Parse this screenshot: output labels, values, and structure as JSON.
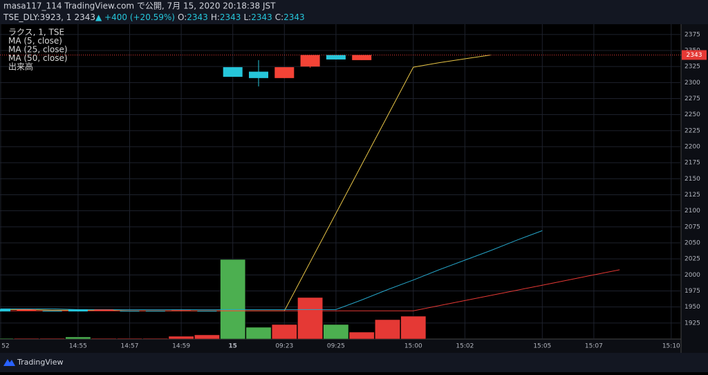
{
  "chart_data": {
    "type": "candlestick",
    "header": "masa117_114 TradingView.com で公開, 7月 15, 2020 20:18:38 JST",
    "symbol": "TSE_DLY:3923, 1",
    "last": 2343,
    "change": "▲ +400 (+20.59%)",
    "ohlc_labels": [
      "O:",
      "H:",
      "L:",
      "C:"
    ],
    "ohlc_values": [
      2343,
      2343,
      2343,
      2343
    ],
    "legend": [
      "ラクス, 1, TSE",
      "MA (5, close)",
      "MA (25, close)",
      "MA (50, close)",
      "出来高"
    ],
    "brand": "TradingView",
    "categories": [
      "52",
      null,
      null,
      "14:55",
      null,
      "14:57",
      null,
      "14:59",
      null,
      "15",
      null,
      "09:23",
      null,
      "09:25",
      null,
      null,
      "15:00",
      null,
      "15:02",
      null,
      null,
      "15:05",
      null,
      "15:07",
      null,
      null,
      "15:10"
    ],
    "open": [
      1943,
      1946,
      1944,
      1943,
      1946,
      1944,
      1944,
      1945,
      1944,
      2309,
      2307,
      2324,
      2343,
      2336,
      2343,
      null,
      null,
      null,
      null,
      null,
      null,
      null,
      null,
      null,
      null,
      null,
      null
    ],
    "high": [
      1947,
      1946,
      1944,
      1946,
      1946,
      1944,
      1944,
      1945,
      1944,
      2324,
      2335,
      2324,
      2343,
      2343,
      2343,
      null,
      null,
      null,
      null,
      null,
      null,
      null,
      null,
      null,
      null,
      null,
      null
    ],
    "low": [
      1943,
      1944,
      1944,
      1943,
      1944,
      1944,
      1944,
      1944,
      1944,
      2309,
      2294,
      2307,
      2323,
      2336,
      2335,
      null,
      null,
      null,
      null,
      null,
      null,
      null,
      null,
      null,
      null,
      null,
      null
    ],
    "close": [
      1947,
      1944,
      1944,
      1946,
      1944,
      1944,
      1944,
      1944,
      1944,
      2324,
      2317,
      2307,
      2325,
      2343,
      2335,
      null,
      null,
      null,
      null,
      null,
      null,
      null,
      null,
      null,
      null,
      null,
      null
    ],
    "up_color": "#26c6da",
    "down_color": "#f44336",
    "volume": [
      1,
      1,
      1,
      3,
      1,
      1,
      1,
      4,
      6,
      115,
      17,
      21,
      60,
      21,
      10,
      28,
      33,
      null,
      null,
      null,
      null,
      null,
      null,
      null,
      null,
      null,
      null
    ],
    "volume_colors": [
      "#4caf50",
      "#e53935",
      "#e53935",
      "#4caf50",
      "#e53935",
      "#e53935",
      "#e53935",
      "#e53935",
      "#e53935",
      "#4caf50",
      "#4caf50",
      "#e53935",
      "#e53935",
      "#4caf50",
      "#e53935",
      "#e53935",
      "#e53935",
      null,
      null,
      null,
      null,
      null,
      null,
      null,
      null,
      null,
      null
    ],
    "volume_ylim": [
      0,
      455
    ],
    "series": [
      {
        "name": "MA (5, close)",
        "color": "#e8c547",
        "values": [
          1946,
          1946,
          1945,
          1945,
          1945,
          1944,
          1944,
          1944,
          1944,
          1944,
          1944,
          1944,
          2020,
          2096,
          2172,
          2248,
          2324,
          2331,
          2337,
          2343,
          null,
          null,
          null,
          null,
          null,
          null,
          null
        ]
      },
      {
        "name": "MA (25, close)",
        "color": "#26a5c9",
        "values": [
          1947,
          1947,
          1947,
          1946,
          1946,
          1946,
          1946,
          1946,
          1946,
          1946,
          1946,
          1946,
          1946,
          1946,
          1961,
          1977,
          1992,
          2008,
          2023,
          2038,
          2054,
          2069,
          null,
          null,
          null,
          null,
          null
        ]
      },
      {
        "name": "MA (50, close)",
        "color": "#e53935",
        "values": [
          1944,
          1944,
          1944,
          1944,
          1944,
          1944,
          1944,
          1944,
          1944,
          1944,
          1944,
          1944,
          1944,
          1944,
          1944,
          1944,
          1944,
          1952,
          1960,
          1968,
          1976,
          1984,
          1992,
          2000,
          2008,
          null,
          null
        ]
      }
    ],
    "ylim": [
      1900,
      2391
    ],
    "yticks": [
      1925,
      1950,
      1975,
      2000,
      2025,
      2050,
      2075,
      2100,
      2125,
      2150,
      2175,
      2200,
      2225,
      2250,
      2275,
      2300,
      2325,
      2350,
      2375
    ],
    "grid": true
  }
}
